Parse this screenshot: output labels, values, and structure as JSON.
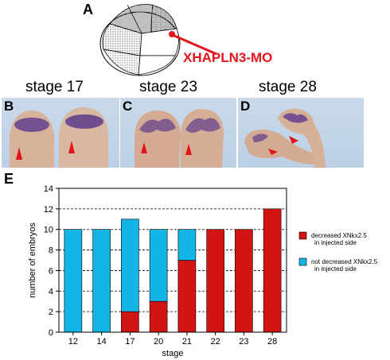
{
  "panels": {
    "A": "A",
    "B": "B",
    "C": "C",
    "D": "D",
    "E": "E"
  },
  "injection_label": "XHAPLN3-MO",
  "stages": [
    "stage 17",
    "stage 23",
    "stage 28"
  ],
  "colors": {
    "decreased": "#d11414",
    "not_decreased": "#13b4e6",
    "arrow": "#e3141b",
    "stain": "#4a2a8a"
  },
  "chart_data": {
    "type": "bar",
    "stacked": true,
    "categories": [
      "12",
      "14",
      "17",
      "20",
      "21",
      "22",
      "23",
      "28"
    ],
    "series": [
      {
        "name": "decreased XNkx2.5 in injected side",
        "values": [
          0,
          0,
          2,
          3,
          7,
          10,
          10,
          12
        ]
      },
      {
        "name": "not decreased XNkx2.5 in injected side",
        "values": [
          10,
          10,
          9,
          7,
          3,
          0,
          0,
          0
        ]
      }
    ],
    "xlabel": "stage",
    "ylabel": "number of embryos",
    "ylim": [
      0,
      14
    ],
    "yticks": [
      0,
      2,
      4,
      6,
      8,
      10,
      12,
      14
    ],
    "grid": "dashed horizontal",
    "legend": "right",
    "legend_lines": [
      [
        "decreased XNkx2.5",
        "in injected side"
      ],
      [
        "not decreased XNkx2.5",
        "in injected side"
      ]
    ]
  }
}
